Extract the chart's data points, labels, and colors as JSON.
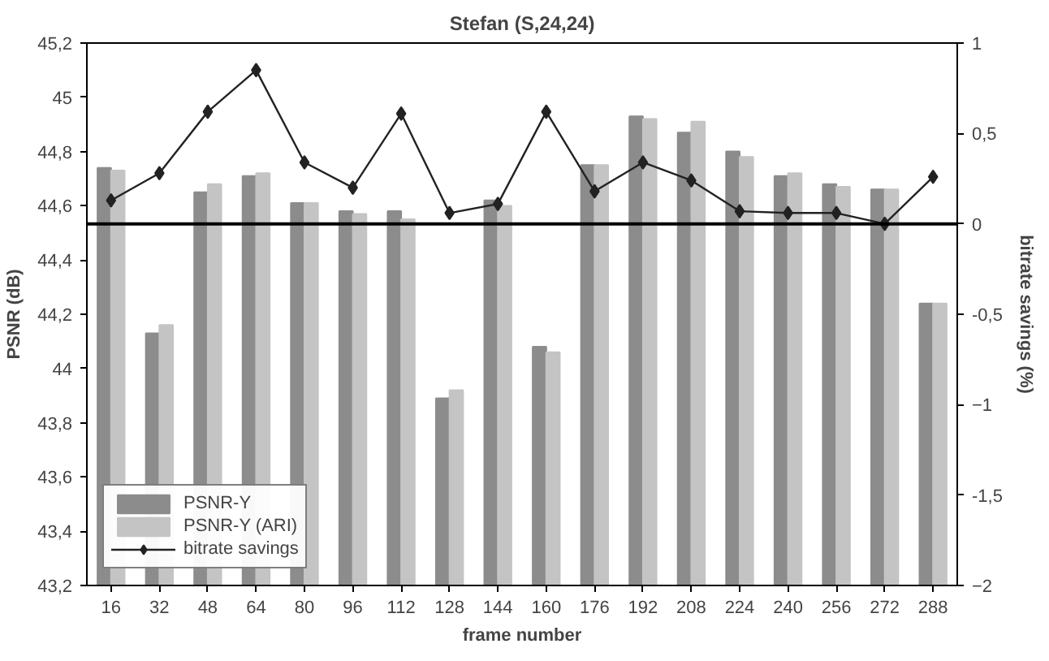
{
  "chart_data": {
    "type": "bar",
    "title": "Stefan (S,24,24)",
    "xlabel": "frame number",
    "ylabel": "PSNR (dB)",
    "y2label": "bitrate savings (%)",
    "categories": [
      "16",
      "32",
      "48",
      "64",
      "80",
      "96",
      "112",
      "128",
      "144",
      "160",
      "176",
      "192",
      "208",
      "224",
      "240",
      "256",
      "272",
      "288"
    ],
    "series": [
      {
        "name": "PSNR-Y",
        "color": "#8c8c8c",
        "values": [
          44.74,
          44.13,
          44.65,
          44.71,
          44.61,
          44.58,
          44.58,
          43.89,
          44.62,
          44.08,
          44.75,
          44.93,
          44.87,
          44.8,
          44.71,
          44.68,
          44.66,
          44.24
        ]
      },
      {
        "name": "PSNR-Y (ARI)",
        "color": "#c4c4c4",
        "values": [
          44.73,
          44.16,
          44.68,
          44.72,
          44.61,
          44.57,
          44.55,
          43.92,
          44.6,
          44.06,
          44.75,
          44.92,
          44.91,
          44.78,
          44.72,
          44.67,
          44.66,
          44.24
        ]
      },
      {
        "name": "bitrate savings",
        "type": "line",
        "axis": "y2",
        "color": "#222222",
        "marker": "diamond",
        "values": [
          0.13,
          0.28,
          0.62,
          0.85,
          0.34,
          0.2,
          0.61,
          0.06,
          0.11,
          0.62,
          0.18,
          0.34,
          0.24,
          0.07,
          0.06,
          0.06,
          0.0,
          0.26
        ]
      }
    ],
    "ylim": [
      43.2,
      45.2
    ],
    "yticks": [
      {
        "value": 43.2,
        "label": "43,2"
      },
      {
        "value": 43.4,
        "label": "43,4"
      },
      {
        "value": 43.6,
        "label": "43,6"
      },
      {
        "value": 43.8,
        "label": "43,8"
      },
      44,
      {
        "value": 44.2,
        "label": "44,2"
      },
      {
        "value": 44.4,
        "label": "44,4"
      },
      {
        "value": 44.6,
        "label": "44,6"
      },
      {
        "value": 44.8,
        "label": "44,8"
      },
      45,
      {
        "value": 45.2,
        "label": "45,2"
      }
    ],
    "y2lim": [
      -2,
      1
    ],
    "y2ticks": [
      -2,
      {
        "value": -1.5,
        "label": "-1,5"
      },
      -1,
      {
        "value": -0.5,
        "label": "-0,5"
      },
      0,
      {
        "value": 0.5,
        "label": "0,5"
      },
      1
    ],
    "ref_lines": [
      {
        "axis": "y2",
        "value": 0,
        "color": "#000000"
      }
    ],
    "grid": false,
    "legend": "bottom left"
  }
}
